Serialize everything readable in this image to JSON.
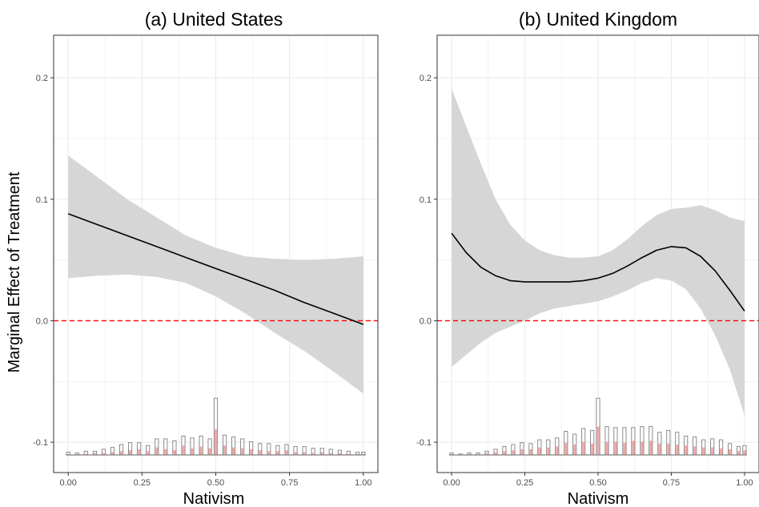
{
  "figure": {
    "ylabel": "Marginal Effect of Treatment",
    "colors": {
      "ci_band": "#d6d6d6",
      "line": "#000000",
      "reference_line": "#ff0000",
      "hist_outline": "#7f7f7f",
      "hist_fill": "#f2a8a8",
      "grid": "#ebebeb",
      "panel_border": "#333333"
    }
  },
  "chart_data": [
    {
      "type": "line",
      "title": "(a) United States",
      "xlabel": "Nativism",
      "ylabel": "Marginal Effect of Treatment",
      "xlim": [
        0,
        1
      ],
      "ylim": [
        -0.125,
        0.235
      ],
      "x_ticks": [
        "0.00",
        "0.25",
        "0.50",
        "0.75",
        "1.00"
      ],
      "y_ticks": [
        "-0.1",
        "0.0",
        "0.1",
        "0.2"
      ],
      "grid": true,
      "reference_line": {
        "y": 0.0,
        "style": "dashed",
        "color": "#ff0000"
      },
      "series": [
        {
          "x": [
            0.0,
            0.1,
            0.2,
            0.3,
            0.4,
            0.5,
            0.6,
            0.7,
            0.8,
            0.9,
            1.0
          ],
          "y": [
            0.088,
            0.079,
            0.07,
            0.061,
            0.052,
            0.043,
            0.034,
            0.025,
            0.015,
            0.006,
            -0.003
          ]
        }
      ],
      "confidence_band": {
        "x": [
          0.0,
          0.1,
          0.2,
          0.3,
          0.4,
          0.5,
          0.6,
          0.7,
          0.8,
          0.9,
          1.0
        ],
        "lower": [
          0.035,
          0.037,
          0.038,
          0.036,
          0.031,
          0.02,
          0.006,
          -0.01,
          -0.025,
          -0.042,
          -0.06
        ],
        "upper": [
          0.136,
          0.118,
          0.1,
          0.085,
          0.07,
          0.06,
          0.053,
          0.051,
          0.05,
          0.051,
          0.053
        ]
      },
      "histogram": {
        "x": [
          0.0,
          0.03,
          0.06,
          0.09,
          0.12,
          0.15,
          0.18,
          0.21,
          0.24,
          0.27,
          0.3,
          0.33,
          0.36,
          0.39,
          0.42,
          0.45,
          0.48,
          0.5,
          0.53,
          0.56,
          0.59,
          0.62,
          0.65,
          0.68,
          0.71,
          0.74,
          0.77,
          0.8,
          0.83,
          0.86,
          0.89,
          0.92,
          0.95,
          0.98,
          1.0
        ],
        "total_counts": [
          3,
          2,
          4,
          4,
          6,
          8,
          11,
          13,
          13,
          10,
          17,
          17,
          15,
          20,
          18,
          20,
          17,
          60,
          21,
          19,
          17,
          14,
          12,
          12,
          10,
          11,
          9,
          9,
          7,
          7,
          6,
          5,
          4,
          3,
          3
        ],
        "treated_counts": [
          1,
          1,
          1,
          2,
          2,
          3,
          4,
          5,
          6,
          4,
          8,
          6,
          5,
          10,
          7,
          9,
          7,
          27,
          10,
          8,
          7,
          6,
          5,
          4,
          4,
          5,
          3,
          3,
          2,
          3,
          2,
          2,
          1,
          1,
          1
        ]
      }
    },
    {
      "type": "line",
      "title": "(b) United Kingdom",
      "xlabel": "Nativism",
      "ylabel": "",
      "xlim": [
        0,
        1
      ],
      "ylim": [
        -0.125,
        0.235
      ],
      "x_ticks": [
        "0.00",
        "0.25",
        "0.50",
        "0.75",
        "1.00"
      ],
      "y_ticks": [
        "-0.1",
        "0.0",
        "0.1",
        "0.2"
      ],
      "grid": true,
      "reference_line": {
        "y": 0.0,
        "style": "dashed",
        "color": "#ff0000"
      },
      "series": [
        {
          "x": [
            0.0,
            0.05,
            0.1,
            0.15,
            0.2,
            0.25,
            0.3,
            0.35,
            0.4,
            0.45,
            0.5,
            0.55,
            0.6,
            0.65,
            0.7,
            0.75,
            0.8,
            0.85,
            0.9,
            0.95,
            1.0
          ],
          "y": [
            0.072,
            0.056,
            0.044,
            0.037,
            0.033,
            0.032,
            0.032,
            0.032,
            0.032,
            0.033,
            0.035,
            0.039,
            0.045,
            0.052,
            0.058,
            0.061,
            0.06,
            0.053,
            0.041,
            0.025,
            0.008
          ]
        }
      ],
      "confidence_band": {
        "x": [
          0.0,
          0.05,
          0.1,
          0.15,
          0.2,
          0.25,
          0.3,
          0.35,
          0.4,
          0.45,
          0.5,
          0.55,
          0.6,
          0.65,
          0.7,
          0.75,
          0.8,
          0.85,
          0.9,
          0.95,
          1.0
        ],
        "lower": [
          -0.038,
          -0.028,
          -0.018,
          -0.01,
          -0.005,
          0.0,
          0.006,
          0.01,
          0.012,
          0.014,
          0.016,
          0.02,
          0.025,
          0.031,
          0.035,
          0.033,
          0.026,
          0.01,
          -0.012,
          -0.04,
          -0.078
        ],
        "upper": [
          0.191,
          0.16,
          0.129,
          0.1,
          0.079,
          0.066,
          0.058,
          0.054,
          0.052,
          0.052,
          0.053,
          0.058,
          0.067,
          0.078,
          0.087,
          0.092,
          0.093,
          0.095,
          0.091,
          0.085,
          0.082
        ]
      },
      "histogram": {
        "x": [
          0.0,
          0.03,
          0.06,
          0.09,
          0.12,
          0.15,
          0.18,
          0.21,
          0.24,
          0.27,
          0.3,
          0.33,
          0.36,
          0.39,
          0.42,
          0.45,
          0.48,
          0.5,
          0.53,
          0.56,
          0.59,
          0.62,
          0.65,
          0.68,
          0.71,
          0.74,
          0.77,
          0.8,
          0.83,
          0.86,
          0.89,
          0.92,
          0.95,
          0.98,
          1.0
        ],
        "total_counts": [
          2,
          1,
          2,
          2,
          4,
          6,
          9,
          11,
          13,
          12,
          16,
          16,
          18,
          25,
          22,
          28,
          26,
          60,
          30,
          29,
          29,
          29,
          30,
          30,
          24,
          26,
          24,
          20,
          19,
          16,
          17,
          16,
          12,
          9,
          10
        ],
        "treated_counts": [
          1,
          0,
          1,
          1,
          2,
          3,
          4,
          5,
          6,
          6,
          8,
          8,
          9,
          13,
          11,
          14,
          12,
          30,
          14,
          14,
          13,
          15,
          14,
          15,
          12,
          12,
          11,
          10,
          9,
          8,
          8,
          7,
          6,
          4,
          5
        ]
      }
    }
  ]
}
